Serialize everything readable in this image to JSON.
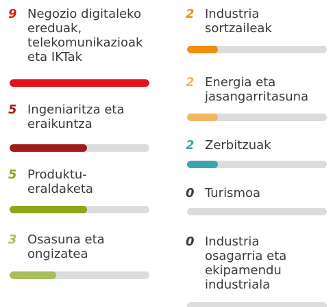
{
  "chart_data": {
    "type": "progress",
    "categories": [
      "Negozio digitaleko\nereduak,\ntelekomunikazioak\neta IKTak",
      "Ingeniaritza eta\neraikuntza",
      "Produktu-\neraldaketa",
      "Osasuna eta\nongizatea",
      "Industria\nsortzaileak",
      "Energia eta\njasangarritasuna",
      "Zerbitzuak",
      "Turismoa",
      "Industria\nosagarria eta\nekipamendu\nindustriala"
    ],
    "values": [
      9,
      5,
      5,
      3,
      2,
      2,
      2,
      0,
      0
    ],
    "colors": [
      "#e3131e",
      "#a11a1c",
      "#8ba719",
      "#a8c05b",
      "#f18e12",
      "#f6b563",
      "#3aa5ae",
      "#3a3a3a",
      "#3a3a3a"
    ],
    "xlim": [
      0,
      9
    ]
  }
}
